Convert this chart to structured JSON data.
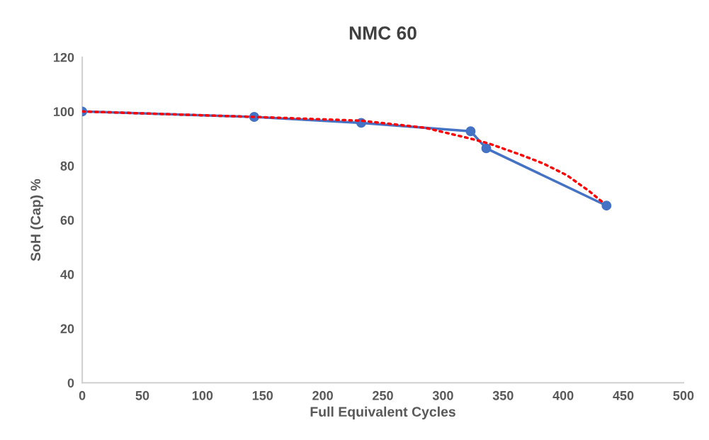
{
  "chart_data": {
    "type": "line",
    "title": "NMC 60",
    "xlabel": "Full Equivalent Cycles",
    "ylabel": "SoH (Cap) %",
    "xlim": [
      0,
      500
    ],
    "xticks": [
      0,
      50,
      100,
      150,
      200,
      250,
      300,
      350,
      400,
      450,
      500
    ],
    "ylim": [
      0,
      120
    ],
    "yticks": [
      0,
      20,
      40,
      60,
      80,
      100,
      120
    ],
    "grid": false,
    "legend": false,
    "series": [
      {
        "color": "#4472c4",
        "marker": "circle",
        "line_style": "solid",
        "x": [
          0,
          143,
          232,
          323,
          336,
          436
        ],
        "values": [
          100,
          98,
          95.8,
          92.7,
          86.4,
          65.3
        ]
      },
      {
        "color": "#ff0000",
        "marker": "none",
        "line_style": "dotted",
        "x": [
          0,
          143,
          232,
          285,
          322,
          338,
          363,
          383,
          403,
          422,
          434
        ],
        "values": [
          100,
          98,
          96.6,
          94,
          90.1,
          88.2,
          84.3,
          80.9,
          76.5,
          70.5,
          66.1
        ]
      }
    ]
  }
}
